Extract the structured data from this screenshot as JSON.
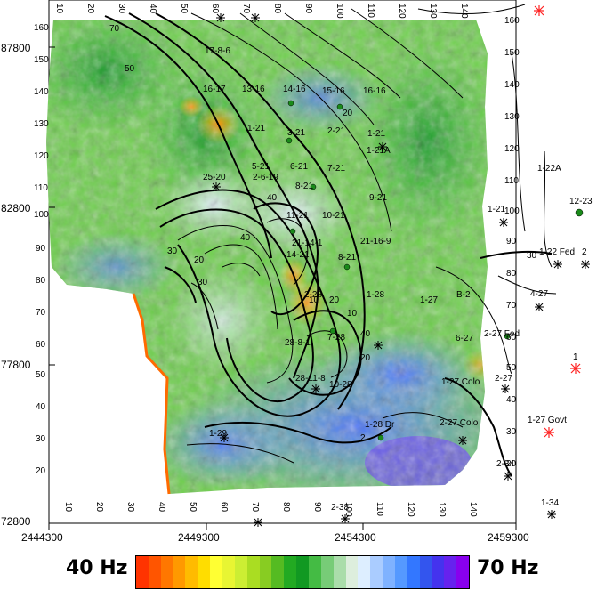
{
  "x_axis": {
    "labels": [
      "2444300",
      "2449300",
      "2454300",
      "2459300"
    ]
  },
  "y_axis": {
    "labels": [
      "87800",
      "82800",
      "77800",
      "72800"
    ]
  },
  "top_ticks": [
    "10",
    "20",
    "30",
    "40",
    "50",
    "60",
    "70",
    "80",
    "90",
    "100",
    "110",
    "120",
    "130",
    "140"
  ],
  "bottom_ticks": [
    "10",
    "20",
    "30",
    "40",
    "50",
    "60",
    "70",
    "80",
    "90",
    "100",
    "110",
    "120",
    "130",
    "140"
  ],
  "right_ticks": [
    "160",
    "150",
    "140",
    "130",
    "120",
    "110",
    "100",
    "90",
    "80",
    "70",
    "60",
    "50",
    "40",
    "30",
    "20"
  ],
  "left_ticks": [
    "160",
    "150",
    "140",
    "130",
    "120",
    "110",
    "100",
    "90",
    "80",
    "70",
    "60",
    "50",
    "40",
    "30",
    "20"
  ],
  "contour_labels": [
    "70",
    "50",
    "20",
    "40",
    "30",
    "20",
    "10",
    "30",
    "20",
    "20",
    "2",
    "40",
    "10",
    "40",
    "30"
  ],
  "wells": [
    "17-8-6",
    "16-17",
    "13-16",
    "14-16",
    "15-16",
    "16-16",
    "1-21",
    "3-21",
    "2-21",
    "1-21",
    "1-21A",
    "5-21",
    "6-21",
    "7-21",
    "2-6-19",
    "25-20",
    "8-21",
    "11-21",
    "10-21",
    "9-21",
    "21-14-1",
    "21-16-9",
    "14-21",
    "8-21",
    "12-23",
    "1-22A",
    "1-22 Fed",
    "2",
    "1-21",
    "4-27",
    "1-27",
    "B-2",
    "2-28",
    "1-28",
    "7-28",
    "28-8-1",
    "6-27",
    "2-27 Fed",
    "28-11-8",
    "10-28",
    "1-27 Colo",
    "2-27",
    "1",
    "1-27 Govt",
    "1-28 Dr",
    "2-27 Colo",
    "1-29",
    "2-34",
    "2-38",
    "1-34"
  ],
  "colorbar": {
    "min_label": "40 Hz",
    "max_label": "70 Hz",
    "colors": [
      "#ff3300",
      "#ff5500",
      "#ff7700",
      "#ff9900",
      "#ffbb00",
      "#ffdd00",
      "#ffff33",
      "#e8f533",
      "#ccee33",
      "#aadd22",
      "#88cc22",
      "#55bb22",
      "#22aa22",
      "#119922",
      "#44bb44",
      "#77cc77",
      "#aaddaa",
      "#ddeedd",
      "#ddeeff",
      "#aaccff",
      "#7fb2ff",
      "#5599ff",
      "#3377ff",
      "#3355ee",
      "#4433ee",
      "#6622ee",
      "#8800ee"
    ]
  }
}
